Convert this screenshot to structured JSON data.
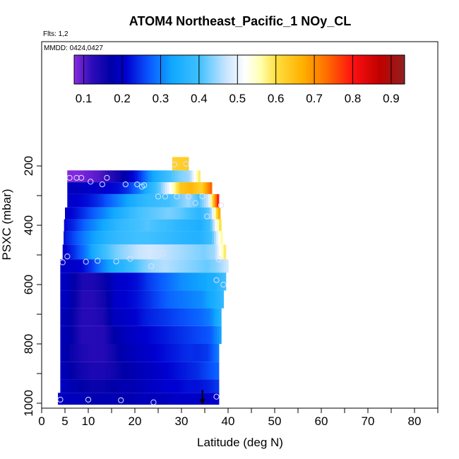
{
  "chart_data": {
    "type": "heatmap",
    "title": "ATOM4 Northeast_Pacific_1 NOy_CL",
    "flights_label": "Flts: 1,2",
    "dates_label": "MMDD: 0424,0427",
    "xlabel": "Latitude (deg N)",
    "ylabel": "PSXC (mbar)",
    "xlim": [
      0,
      85
    ],
    "ylim": [
      1000,
      60
    ],
    "x_ticks": [
      0,
      5,
      10,
      20,
      30,
      40,
      50,
      60,
      70,
      80
    ],
    "x_minor_ticks": [
      15,
      25,
      35,
      45,
      55,
      65,
      75,
      85
    ],
    "y_ticks": [
      200,
      400,
      600,
      800,
      1000
    ],
    "y_minor_ticks": [
      300,
      500,
      700,
      900
    ],
    "colorbar": {
      "range": [
        0.075,
        0.935
      ],
      "ticks": [
        0.1,
        0.2,
        0.3,
        0.4,
        0.5,
        0.6,
        0.7,
        0.8,
        0.9
      ],
      "stops": [
        {
          "v": 0.075,
          "color": "#8a2be2"
        },
        {
          "v": 0.12,
          "color": "#2e0db8"
        },
        {
          "v": 0.17,
          "color": "#0000a8"
        },
        {
          "v": 0.21,
          "color": "#0000d0"
        },
        {
          "v": 0.27,
          "color": "#0a58ff"
        },
        {
          "v": 0.33,
          "color": "#10a8ff"
        },
        {
          "v": 0.4,
          "color": "#40c0ff"
        },
        {
          "v": 0.47,
          "color": "#c8e4ff"
        },
        {
          "v": 0.52,
          "color": "#ffffff"
        },
        {
          "v": 0.56,
          "color": "#ffffb0"
        },
        {
          "v": 0.6,
          "color": "#ffe040"
        },
        {
          "v": 0.67,
          "color": "#ffb000"
        },
        {
          "v": 0.73,
          "color": "#ff7000"
        },
        {
          "v": 0.8,
          "color": "#ff1010"
        },
        {
          "v": 0.87,
          "color": "#c00000"
        },
        {
          "v": 0.935,
          "color": "#902020"
        }
      ]
    },
    "bands": [
      {
        "p": [
          170,
          215
        ],
        "lat": [
          28,
          31.5
        ],
        "v": [
          0.62,
          0.63
        ]
      },
      {
        "p": [
          215,
          255
        ],
        "lat": [
          5.5,
          34
        ],
        "v": [
          0.08,
          0.08,
          0.09,
          0.1,
          0.12,
          0.15,
          0.19,
          0.24,
          0.31,
          0.36,
          0.4,
          0.43,
          0.45,
          0.6
        ]
      },
      {
        "p": [
          255,
          295
        ],
        "lat": [
          5.5,
          36.5
        ],
        "v": [
          0.19,
          0.19,
          0.2,
          0.2,
          0.21,
          0.22,
          0.25,
          0.3,
          0.36,
          0.42,
          0.52,
          0.64,
          0.66,
          0.62,
          0.75
        ]
      },
      {
        "p": [
          295,
          340
        ],
        "lat": [
          5.5,
          38
        ],
        "v": [
          0.2,
          0.21,
          0.22,
          0.24,
          0.27,
          0.3,
          0.33,
          0.36,
          0.38,
          0.39,
          0.4,
          0.42,
          0.45,
          0.4,
          0.48,
          0.82
        ]
      },
      {
        "p": [
          340,
          380
        ],
        "lat": [
          5,
          38.3
        ],
        "v": [
          0.2,
          0.22,
          0.25,
          0.28,
          0.31,
          0.34,
          0.37,
          0.4,
          0.41,
          0.42,
          0.43,
          0.42,
          0.4,
          0.37,
          0.42,
          0.7
        ]
      },
      {
        "p": [
          380,
          420
        ],
        "lat": [
          4.8,
          38.5
        ],
        "v": [
          0.21,
          0.24,
          0.28,
          0.31,
          0.34,
          0.37,
          0.39,
          0.4,
          0.41,
          0.4,
          0.39,
          0.37,
          0.36,
          0.35,
          0.4,
          0.62
        ]
      },
      {
        "p": [
          420,
          465
        ],
        "lat": [
          4.7,
          38.8
        ],
        "v": [
          0.22,
          0.26,
          0.3,
          0.33,
          0.36,
          0.38,
          0.39,
          0.4,
          0.4,
          0.39,
          0.38,
          0.37,
          0.36,
          0.36,
          0.4,
          0.58
        ]
      },
      {
        "p": [
          465,
          515
        ],
        "lat": [
          4.5,
          39.5
        ],
        "v": [
          0.2,
          0.24,
          0.29,
          0.35,
          0.4,
          0.43,
          0.45,
          0.47,
          0.48,
          0.47,
          0.46,
          0.45,
          0.44,
          0.43,
          0.45,
          0.6
        ]
      },
      {
        "p": [
          515,
          560
        ],
        "lat": [
          4,
          40
        ],
        "v": [
          0.2,
          0.2,
          0.21,
          0.25,
          0.3,
          0.34,
          0.37,
          0.4,
          0.43,
          0.45,
          0.46,
          0.45,
          0.44,
          0.43,
          0.42,
          0.44,
          0.48
        ]
      },
      {
        "p": [
          560,
          620
        ],
        "lat": [
          4,
          39.5
        ],
        "v": [
          0.2,
          0.18,
          0.14,
          0.14,
          0.16,
          0.2,
          0.21,
          0.22,
          0.25,
          0.27,
          0.29,
          0.31,
          0.32,
          0.33,
          0.35,
          0.4
        ]
      },
      {
        "p": [
          620,
          680
        ],
        "lat": [
          4,
          39
        ],
        "v": [
          0.2,
          0.18,
          0.13,
          0.13,
          0.15,
          0.2,
          0.21,
          0.22,
          0.24,
          0.26,
          0.28,
          0.29,
          0.3,
          0.31,
          0.34,
          0.38
        ]
      },
      {
        "p": [
          680,
          740
        ],
        "lat": [
          4,
          38.5
        ],
        "v": [
          0.19,
          0.17,
          0.13,
          0.13,
          0.14,
          0.19,
          0.2,
          0.21,
          0.23,
          0.24,
          0.25,
          0.26,
          0.27,
          0.28,
          0.3,
          0.36
        ]
      },
      {
        "p": [
          740,
          800
        ],
        "lat": [
          4,
          38.5
        ],
        "v": [
          0.19,
          0.17,
          0.13,
          0.13,
          0.13,
          0.17,
          0.19,
          0.2,
          0.21,
          0.22,
          0.23,
          0.24,
          0.25,
          0.26,
          0.27,
          0.33
        ]
      },
      {
        "p": [
          800,
          860
        ],
        "lat": [
          4,
          38
        ],
        "v": [
          0.19,
          0.16,
          0.14,
          0.13,
          0.13,
          0.15,
          0.18,
          0.19,
          0.2,
          0.21,
          0.22,
          0.23,
          0.24,
          0.24,
          0.25,
          0.3
        ]
      },
      {
        "p": [
          860,
          920
        ],
        "lat": [
          4,
          38
        ],
        "v": [
          0.19,
          0.17,
          0.15,
          0.14,
          0.14,
          0.15,
          0.17,
          0.18,
          0.19,
          0.2,
          0.21,
          0.22,
          0.23,
          0.24,
          0.26,
          0.28
        ]
      },
      {
        "p": [
          920,
          965
        ],
        "lat": [
          4,
          38
        ],
        "v": [
          0.2,
          0.18,
          0.17,
          0.16,
          0.16,
          0.17,
          0.18,
          0.18,
          0.19,
          0.2,
          0.21,
          0.21,
          0.22,
          0.22,
          0.23,
          0.25
        ]
      },
      {
        "p": [
          965,
          1005
        ],
        "lat": [
          3.5,
          38
        ],
        "v": [
          0.2,
          0.19,
          0.19,
          0.18,
          0.18,
          0.18,
          0.18,
          0.18,
          0.19,
          0.19,
          0.19,
          0.2,
          0.2,
          0.2,
          0.2,
          0.21
        ]
      }
    ],
    "samples": [
      {
        "lat": 28.5,
        "p": 195
      },
      {
        "lat": 31,
        "p": 193
      },
      {
        "lat": 6,
        "p": 240
      },
      {
        "lat": 7.5,
        "p": 240
      },
      {
        "lat": 8.5,
        "p": 240
      },
      {
        "lat": 10.5,
        "p": 253
      },
      {
        "lat": 14,
        "p": 240
      },
      {
        "lat": 13,
        "p": 262
      },
      {
        "lat": 18,
        "p": 262
      },
      {
        "lat": 20.5,
        "p": 262
      },
      {
        "lat": 21.5,
        "p": 270
      },
      {
        "lat": 22,
        "p": 265
      },
      {
        "lat": 25,
        "p": 303
      },
      {
        "lat": 26.5,
        "p": 303
      },
      {
        "lat": 29,
        "p": 303
      },
      {
        "lat": 31.5,
        "p": 303
      },
      {
        "lat": 33,
        "p": 325
      },
      {
        "lat": 34.5,
        "p": 302
      },
      {
        "lat": 35.5,
        "p": 370
      },
      {
        "lat": 38.5,
        "p": 333
      },
      {
        "lat": 4.5,
        "p": 525
      },
      {
        "lat": 5.5,
        "p": 505
      },
      {
        "lat": 9.5,
        "p": 523
      },
      {
        "lat": 12,
        "p": 520
      },
      {
        "lat": 16,
        "p": 522
      },
      {
        "lat": 19,
        "p": 513
      },
      {
        "lat": 23.5,
        "p": 538
      },
      {
        "lat": 26,
        "p": 495
      },
      {
        "lat": 38,
        "p": 515
      },
      {
        "lat": 37.5,
        "p": 585
      },
      {
        "lat": 39,
        "p": 600
      },
      {
        "lat": 4,
        "p": 988
      },
      {
        "lat": 10,
        "p": 988
      },
      {
        "lat": 17,
        "p": 990
      },
      {
        "lat": 24,
        "p": 997
      },
      {
        "lat": 37.5,
        "p": 978
      }
    ],
    "marker": {
      "lat": 34.5,
      "p_from": 955,
      "p_to": 1005
    }
  }
}
